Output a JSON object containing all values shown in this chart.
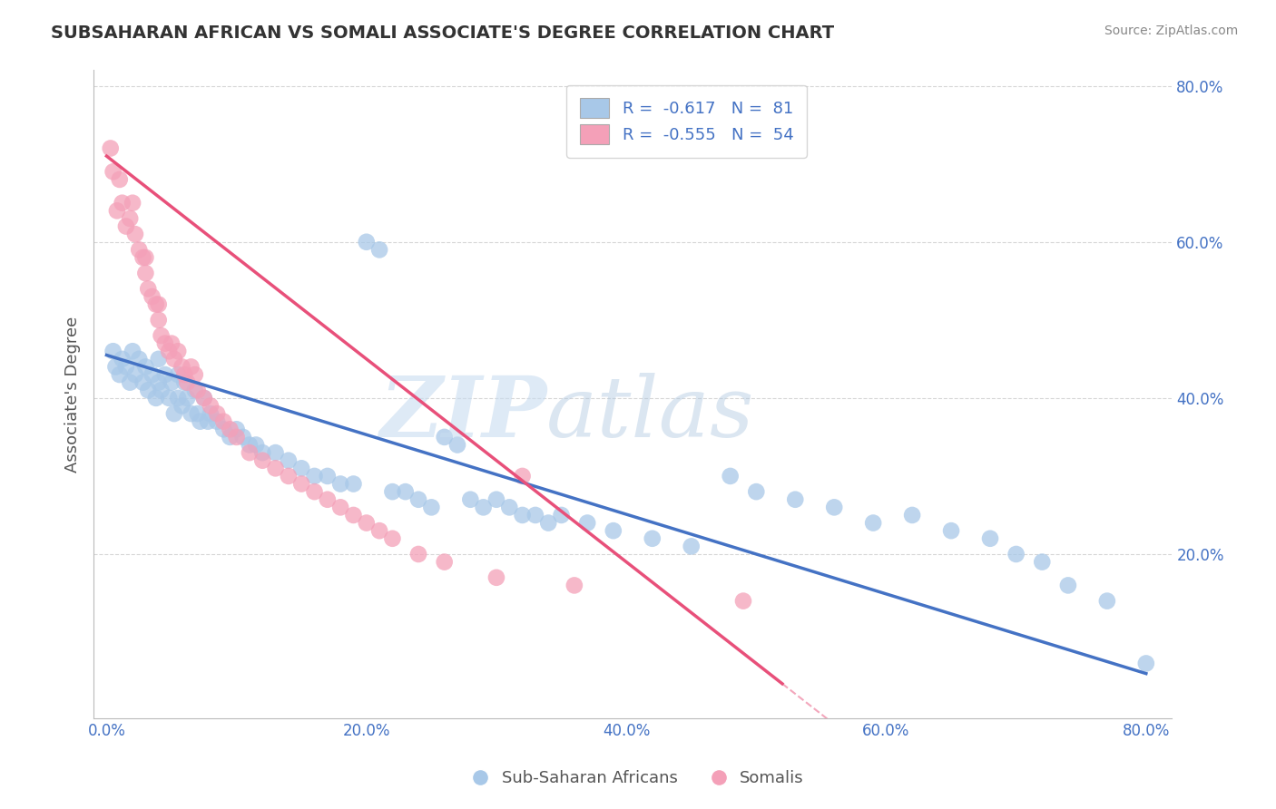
{
  "title": "SUBSAHARAN AFRICAN VS SOMALI ASSOCIATE'S DEGREE CORRELATION CHART",
  "source": "Source: ZipAtlas.com",
  "ylabel": "Associate's Degree",
  "xlim": [
    -0.01,
    0.82
  ],
  "ylim": [
    -0.01,
    0.82
  ],
  "xticks": [
    0.0,
    0.2,
    0.4,
    0.6,
    0.8
  ],
  "yticks": [
    0.2,
    0.4,
    0.6,
    0.8
  ],
  "xticklabels": [
    "0.0%",
    "20.0%",
    "40.0%",
    "60.0%",
    "80.0%"
  ],
  "yticklabels": [
    "20.0%",
    "40.0%",
    "60.0%",
    "80.0%"
  ],
  "blue_color": "#A8C8E8",
  "pink_color": "#F4A0B8",
  "line_blue": "#4472C4",
  "line_pink": "#E8507A",
  "grid_color": "#CCCCCC",
  "legend_R_blue": "-0.617",
  "legend_N_blue": "81",
  "legend_R_pink": "-0.555",
  "legend_N_pink": "54",
  "blue_scatter_x": [
    0.005,
    0.007,
    0.01,
    0.012,
    0.015,
    0.018,
    0.02,
    0.022,
    0.025,
    0.028,
    0.03,
    0.032,
    0.035,
    0.038,
    0.04,
    0.04,
    0.042,
    0.045,
    0.048,
    0.05,
    0.052,
    0.055,
    0.055,
    0.058,
    0.06,
    0.062,
    0.065,
    0.068,
    0.07,
    0.072,
    0.075,
    0.078,
    0.08,
    0.085,
    0.09,
    0.095,
    0.1,
    0.105,
    0.11,
    0.115,
    0.12,
    0.13,
    0.14,
    0.15,
    0.16,
    0.17,
    0.18,
    0.19,
    0.2,
    0.21,
    0.22,
    0.23,
    0.24,
    0.25,
    0.26,
    0.27,
    0.28,
    0.29,
    0.3,
    0.31,
    0.32,
    0.33,
    0.34,
    0.35,
    0.37,
    0.39,
    0.42,
    0.45,
    0.48,
    0.5,
    0.53,
    0.56,
    0.59,
    0.62,
    0.65,
    0.68,
    0.7,
    0.72,
    0.74,
    0.77,
    0.8
  ],
  "blue_scatter_y": [
    0.46,
    0.44,
    0.43,
    0.45,
    0.44,
    0.42,
    0.46,
    0.43,
    0.45,
    0.42,
    0.44,
    0.41,
    0.43,
    0.4,
    0.45,
    0.42,
    0.41,
    0.43,
    0.4,
    0.42,
    0.38,
    0.43,
    0.4,
    0.39,
    0.42,
    0.4,
    0.38,
    0.41,
    0.38,
    0.37,
    0.4,
    0.37,
    0.38,
    0.37,
    0.36,
    0.35,
    0.36,
    0.35,
    0.34,
    0.34,
    0.33,
    0.33,
    0.32,
    0.31,
    0.3,
    0.3,
    0.29,
    0.29,
    0.6,
    0.59,
    0.28,
    0.28,
    0.27,
    0.26,
    0.35,
    0.34,
    0.27,
    0.26,
    0.27,
    0.26,
    0.25,
    0.25,
    0.24,
    0.25,
    0.24,
    0.23,
    0.22,
    0.21,
    0.3,
    0.28,
    0.27,
    0.26,
    0.24,
    0.25,
    0.23,
    0.22,
    0.2,
    0.19,
    0.16,
    0.14,
    0.06
  ],
  "pink_scatter_x": [
    0.003,
    0.005,
    0.008,
    0.01,
    0.012,
    0.015,
    0.018,
    0.02,
    0.022,
    0.025,
    0.028,
    0.03,
    0.03,
    0.032,
    0.035,
    0.038,
    0.04,
    0.04,
    0.042,
    0.045,
    0.048,
    0.05,
    0.052,
    0.055,
    0.058,
    0.06,
    0.062,
    0.065,
    0.068,
    0.07,
    0.075,
    0.08,
    0.085,
    0.09,
    0.095,
    0.1,
    0.11,
    0.12,
    0.13,
    0.14,
    0.15,
    0.16,
    0.17,
    0.18,
    0.19,
    0.2,
    0.21,
    0.22,
    0.24,
    0.26,
    0.3,
    0.32,
    0.36,
    0.49
  ],
  "pink_scatter_y": [
    0.72,
    0.69,
    0.64,
    0.68,
    0.65,
    0.62,
    0.63,
    0.65,
    0.61,
    0.59,
    0.58,
    0.56,
    0.58,
    0.54,
    0.53,
    0.52,
    0.5,
    0.52,
    0.48,
    0.47,
    0.46,
    0.47,
    0.45,
    0.46,
    0.44,
    0.43,
    0.42,
    0.44,
    0.43,
    0.41,
    0.4,
    0.39,
    0.38,
    0.37,
    0.36,
    0.35,
    0.33,
    0.32,
    0.31,
    0.3,
    0.29,
    0.28,
    0.27,
    0.26,
    0.25,
    0.24,
    0.23,
    0.22,
    0.2,
    0.19,
    0.17,
    0.3,
    0.16,
    0.14
  ],
  "background_color": "#FFFFFF",
  "title_color": "#333333",
  "source_color": "#888888",
  "tick_color": "#4472C4",
  "label_color": "#4472C4",
  "blue_line_intercept": 0.455,
  "blue_line_slope": -0.51,
  "pink_line_intercept": 0.71,
  "pink_line_slope": -1.3,
  "pink_line_end_x": 0.52
}
